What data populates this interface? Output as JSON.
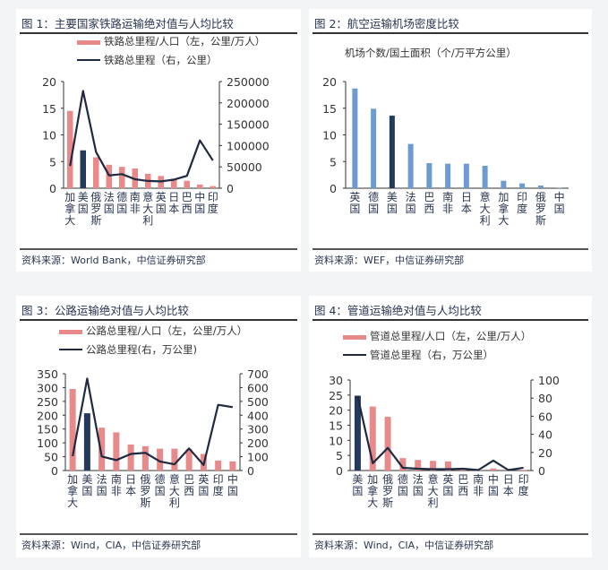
{
  "panels": [
    {
      "title": "图 1：主要国家铁路运输绝对值与人均比较",
      "source": "资料来源：World Bank，中信证券研究部"
    },
    {
      "title": "图 2：航空运输机场密度比较",
      "source": "资料来源：WEF，中信证券研究部"
    },
    {
      "title": "图 3：公路运输绝对值与人均比较",
      "source": "资料来源：Wind，CIA，中信证券研究部"
    },
    {
      "title": "图 4：管道运输绝对值与人均比较",
      "source": "资料来源：Wind，CIA，中信证券研究部"
    }
  ],
  "chart_data": [
    {
      "type": "bar+line",
      "title": "图 1：主要国家铁路运输绝对值与人均比较",
      "categories": [
        "加拿大",
        "美国",
        "俄罗斯",
        "法国",
        "德国",
        "南非",
        "意大利",
        "英国",
        "日本",
        "巴西",
        "中国",
        "印度"
      ],
      "series": [
        {
          "name": "铁路总里程/人口（左，公里/万人）",
          "type": "bar",
          "axis": "left",
          "color": "#e8898a",
          "highlight_index": 1,
          "highlight_color": "#233a5c",
          "values": [
            14.5,
            7.1,
            5.8,
            4.4,
            4.0,
            3.7,
            2.7,
            2.3,
            1.8,
            1.4,
            0.7,
            0.4
          ]
        },
        {
          "name": "铁路总里程（右，公里）",
          "type": "line",
          "axis": "right",
          "color": "#1f2a40",
          "values": [
            52000,
            228000,
            85000,
            30000,
            33000,
            21000,
            17000,
            16000,
            20000,
            29000,
            112000,
            65000
          ]
        }
      ],
      "left_axis": {
        "min": 0,
        "max": 20,
        "ticks": [
          0,
          5,
          10,
          15,
          20
        ]
      },
      "right_axis": {
        "min": 0,
        "max": 250000,
        "ticks": [
          0,
          50000,
          100000,
          150000,
          200000,
          250000
        ]
      },
      "legend_position": "top",
      "grid": false
    },
    {
      "type": "bar",
      "title": "图 2：航空运输机场密度比较",
      "subtitle": "机场个数/国土面积（个/万平方公里）",
      "categories": [
        "英国",
        "德国",
        "美国",
        "法国",
        "巴西",
        "南非",
        "日本",
        "意大利",
        "加拿大",
        "印度",
        "俄罗斯",
        "中国"
      ],
      "values": [
        18.7,
        14.9,
        13.6,
        8.3,
        4.7,
        4.6,
        4.6,
        4.2,
        1.4,
        0.9,
        0.5,
        0.1
      ],
      "color": "#6b9bd1",
      "highlight_index": 2,
      "highlight_color": "#233a5c",
      "ylim": [
        0,
        20
      ],
      "ticks": [
        0,
        5,
        10,
        15,
        20
      ],
      "grid": false
    },
    {
      "type": "bar+line",
      "title": "图 3：公路运输绝对值与人均比较",
      "categories": [
        "加拿大",
        "美国",
        "法国",
        "南非",
        "日本",
        "俄罗斯",
        "德国",
        "意大利",
        "巴西",
        "英国",
        "印度",
        "中国"
      ],
      "series": [
        {
          "name": "公路总里程/人口（左，公里/万人）",
          "type": "bar",
          "axis": "left",
          "color": "#e8898a",
          "highlight_index": 1,
          "highlight_color": "#233a5c",
          "values": [
            295,
            207,
            155,
            138,
            94,
            88,
            79,
            79,
            78,
            60,
            36,
            33
          ]
        },
        {
          "name": "公路总里程(右，万公里)",
          "type": "line",
          "axis": "right",
          "color": "#1f2a40",
          "values": [
            104,
            665,
            102,
            75,
            120,
            128,
            65,
            45,
            160,
            40,
            475,
            458
          ]
        }
      ],
      "left_axis": {
        "min": 0,
        "max": 350,
        "ticks": [
          0,
          50,
          100,
          150,
          200,
          250,
          300,
          350
        ]
      },
      "right_axis": {
        "min": 0,
        "max": 700,
        "ticks": [
          0,
          100,
          200,
          300,
          400,
          500,
          600,
          700
        ]
      },
      "legend_position": "top",
      "grid": false
    },
    {
      "type": "bar+line",
      "title": "图 4：管道运输绝对值与人均比较",
      "categories": [
        "美国",
        "加拿大",
        "俄罗斯",
        "德国",
        "法国",
        "意大利",
        "英国",
        "巴西",
        "南非",
        "中国",
        "日本",
        "印度"
      ],
      "series": [
        {
          "name": "管道总里程/人口（左，公里/万人）",
          "type": "bar",
          "axis": "left",
          "color": "#e8898a",
          "highlight_index": 0,
          "highlight_color": "#233a5c",
          "values": [
            24.8,
            21.2,
            17.8,
            4.1,
            3.5,
            3.2,
            3.0,
            0.3,
            0.2,
            0.7,
            0.1,
            0.2
          ]
        },
        {
          "name": "管道总里程（右，万公里）",
          "type": "line",
          "axis": "right",
          "color": "#1f2a40",
          "values": [
            82,
            8,
            25,
            3,
            2,
            1.5,
            1.5,
            2,
            0.5,
            11,
            0.5,
            3
          ]
        }
      ],
      "left_axis": {
        "min": 0,
        "max": 30,
        "ticks": [
          0,
          5,
          10,
          15,
          20,
          25,
          30
        ]
      },
      "right_axis": {
        "min": 0,
        "max": 100,
        "ticks": [
          0,
          20,
          40,
          60,
          80,
          100
        ]
      },
      "legend_position": "top",
      "grid": false
    }
  ]
}
